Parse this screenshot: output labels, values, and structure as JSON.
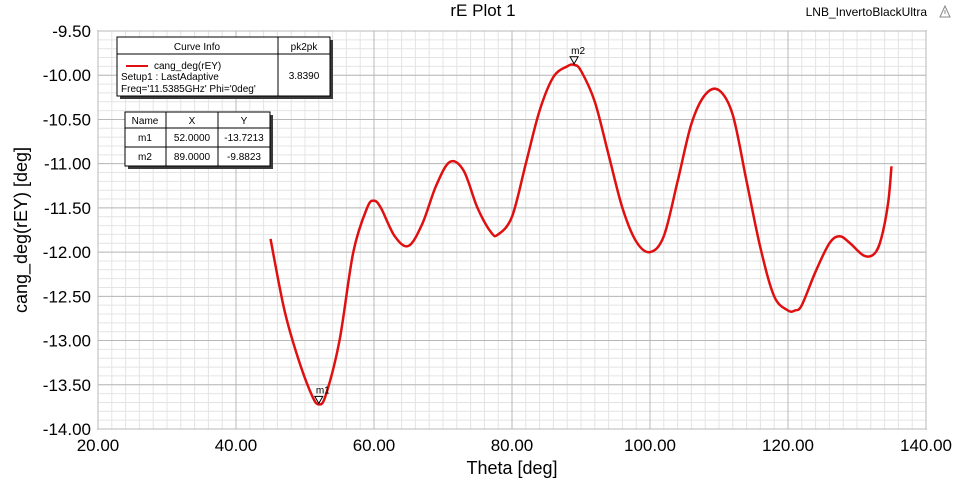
{
  "project_name": "LNB_InvertoBlackUltra",
  "chart_data": {
    "type": "line",
    "title": "rE Plot 1",
    "xlabel": "Theta [deg]",
    "ylabel": "cang_deg(rEY) [deg]",
    "xlim": [
      20,
      140
    ],
    "ylim": [
      -14,
      -9.5
    ],
    "x_ticks": [
      "20.00",
      "40.00",
      "60.00",
      "80.00",
      "100.00",
      "120.00",
      "140.00"
    ],
    "y_ticks": [
      "-9.50",
      "-10.00",
      "-10.50",
      "-11.00",
      "-11.50",
      "-12.00",
      "-12.50",
      "-13.00",
      "-13.50",
      "-14.00"
    ],
    "grid": true,
    "series": [
      {
        "name": "cang_deg(rEY)",
        "color": "#e01010",
        "x": [
          45,
          47,
          49,
          51,
          52,
          53,
          55,
          57,
          59,
          60,
          61,
          63,
          65,
          67,
          69,
          71,
          73,
          75,
          77,
          78,
          80,
          82,
          84,
          86,
          88,
          89,
          90,
          92,
          94,
          96,
          98,
          100,
          102,
          104,
          106,
          108,
          110,
          112,
          114,
          116,
          118,
          120,
          121,
          122,
          124,
          126,
          127.5,
          129,
          131,
          132.5,
          133.5,
          134.5,
          135
        ],
        "y": [
          -11.85,
          -12.65,
          -13.2,
          -13.62,
          -13.7213,
          -13.62,
          -13.0,
          -12.0,
          -11.5,
          -11.42,
          -11.5,
          -11.82,
          -11.93,
          -11.68,
          -11.25,
          -10.98,
          -11.08,
          -11.5,
          -11.78,
          -11.8,
          -11.6,
          -11.0,
          -10.4,
          -10.02,
          -9.9,
          -9.8823,
          -9.95,
          -10.3,
          -10.9,
          -11.5,
          -11.88,
          -12.0,
          -11.82,
          -11.2,
          -10.55,
          -10.22,
          -10.17,
          -10.45,
          -11.2,
          -11.95,
          -12.5,
          -12.66,
          -12.66,
          -12.6,
          -12.22,
          -11.9,
          -11.82,
          -11.9,
          -12.04,
          -12.02,
          -11.85,
          -11.45,
          -11.03
        ]
      }
    ],
    "markers": [
      {
        "name": "m1",
        "x": 52,
        "y": -13.7213
      },
      {
        "name": "m2",
        "x": 89,
        "y": -9.8823
      }
    ]
  },
  "legend": {
    "header_curve": "Curve Info",
    "header_stat": "pk2pk",
    "curve_name": "cang_deg(rEY)",
    "line2": "Setup1 : LastAdaptive",
    "line3": "Freq='11.5385GHz' Phi='0deg'",
    "stat_value": "3.8390"
  },
  "marker_table": {
    "headers": [
      "Name",
      "X",
      "Y"
    ],
    "rows": [
      [
        "m1",
        "52.0000",
        "-13.7213"
      ],
      [
        "m2",
        "89.0000",
        "-9.8823"
      ]
    ]
  }
}
